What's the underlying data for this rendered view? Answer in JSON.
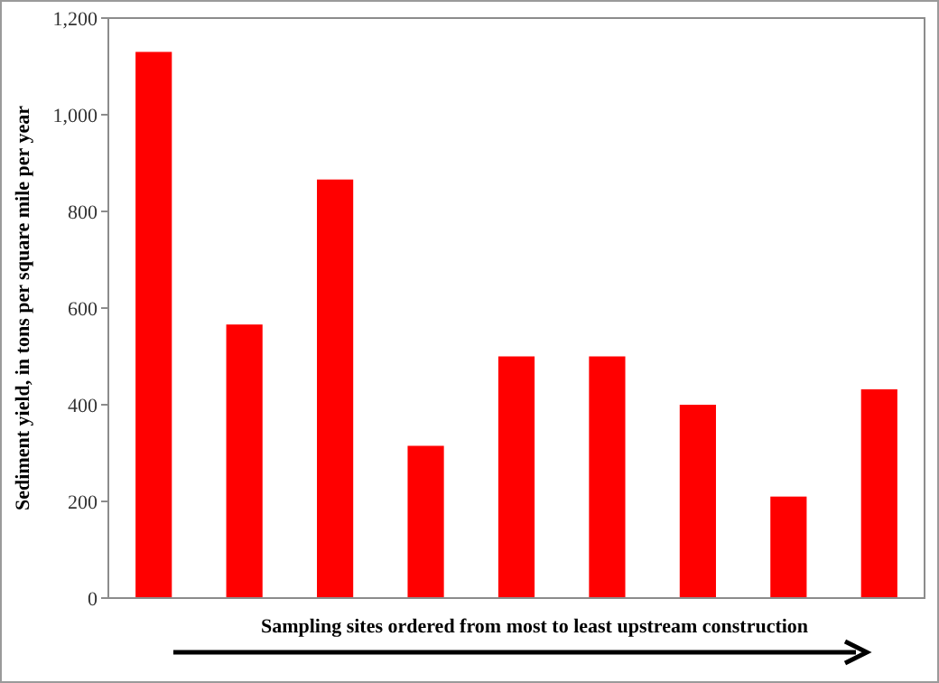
{
  "chart_data": {
    "type": "bar",
    "xlabel": "Sampling sites ordered from most to least upstream construction",
    "ylabel": "Sediment yield, in tons per square mile per year",
    "categories": [
      null,
      null,
      null,
      null,
      null,
      null,
      null,
      null,
      null
    ],
    "values": [
      1130,
      566,
      866,
      315,
      500,
      500,
      400,
      210,
      432
    ],
    "color": "#ff0000",
    "ylim": [
      0,
      1200
    ],
    "yticks": [
      0,
      200,
      400,
      600,
      800,
      {
        "value": 1000,
        "label": "1,000"
      },
      {
        "value": 1200,
        "label": "1,200"
      }
    ],
    "grid": false
  }
}
